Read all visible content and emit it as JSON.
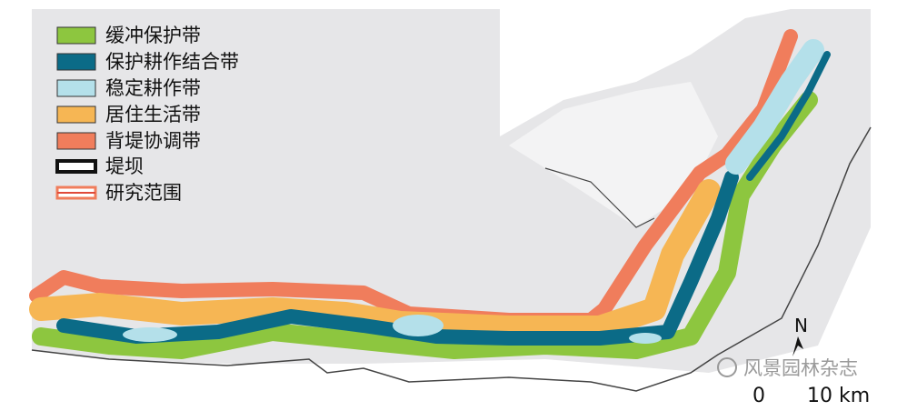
{
  "legend": {
    "items": [
      {
        "label": "缓冲保护带"
      },
      {
        "label": "保护耕作结合带"
      },
      {
        "label": "稳定耕作带"
      },
      {
        "label": "居住生活带"
      },
      {
        "label": "背堤协调带"
      },
      {
        "label": "堤坝"
      },
      {
        "label": "研究范围"
      }
    ]
  },
  "north": {
    "label": "N"
  },
  "scale": {
    "start": "0",
    "end": "10 km"
  },
  "watermark": "风景园林杂志"
}
